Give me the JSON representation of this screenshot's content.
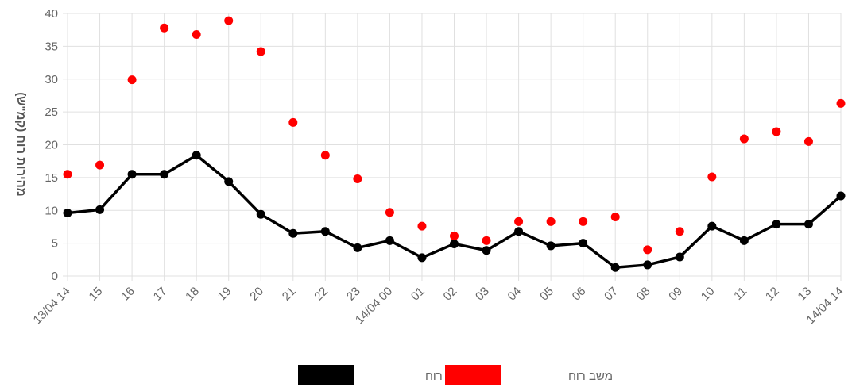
{
  "chart_data": {
    "type": "line",
    "title": "",
    "xlabel": "",
    "ylabel": "מהירות רוח (קמ\"ש)",
    "ylim": [
      0,
      40
    ],
    "y_ticks": [
      0,
      5,
      10,
      15,
      20,
      25,
      30,
      35,
      40
    ],
    "categories": [
      "13/04 14",
      "15",
      "16",
      "17",
      "18",
      "19",
      "20",
      "21",
      "22",
      "23",
      "14/04 00",
      "01",
      "02",
      "03",
      "04",
      "05",
      "06",
      "07",
      "08",
      "09",
      "10",
      "11",
      "12",
      "13",
      "14/04 14"
    ],
    "grid": true,
    "legend_position": "bottom",
    "series": [
      {
        "name": "מהירות רוח",
        "style": "line",
        "color": "#000000",
        "values": [
          9.6,
          10.1,
          15.5,
          15.5,
          18.4,
          14.4,
          9.4,
          6.5,
          6.8,
          4.3,
          5.4,
          2.8,
          4.9,
          3.9,
          6.8,
          4.6,
          5.0,
          1.3,
          1.7,
          2.9,
          7.6,
          5.4,
          7.9,
          7.9,
          12.2
        ]
      },
      {
        "name": "משב רוח",
        "style": "points",
        "color": "#ff0000",
        "values": [
          15.5,
          16.9,
          29.9,
          37.8,
          36.8,
          38.9,
          34.2,
          23.4,
          18.4,
          14.8,
          9.7,
          7.6,
          6.1,
          5.4,
          8.3,
          8.3,
          8.3,
          9.0,
          4.0,
          6.8,
          15.1,
          20.9,
          22.0,
          20.5,
          26.3
        ]
      }
    ]
  }
}
